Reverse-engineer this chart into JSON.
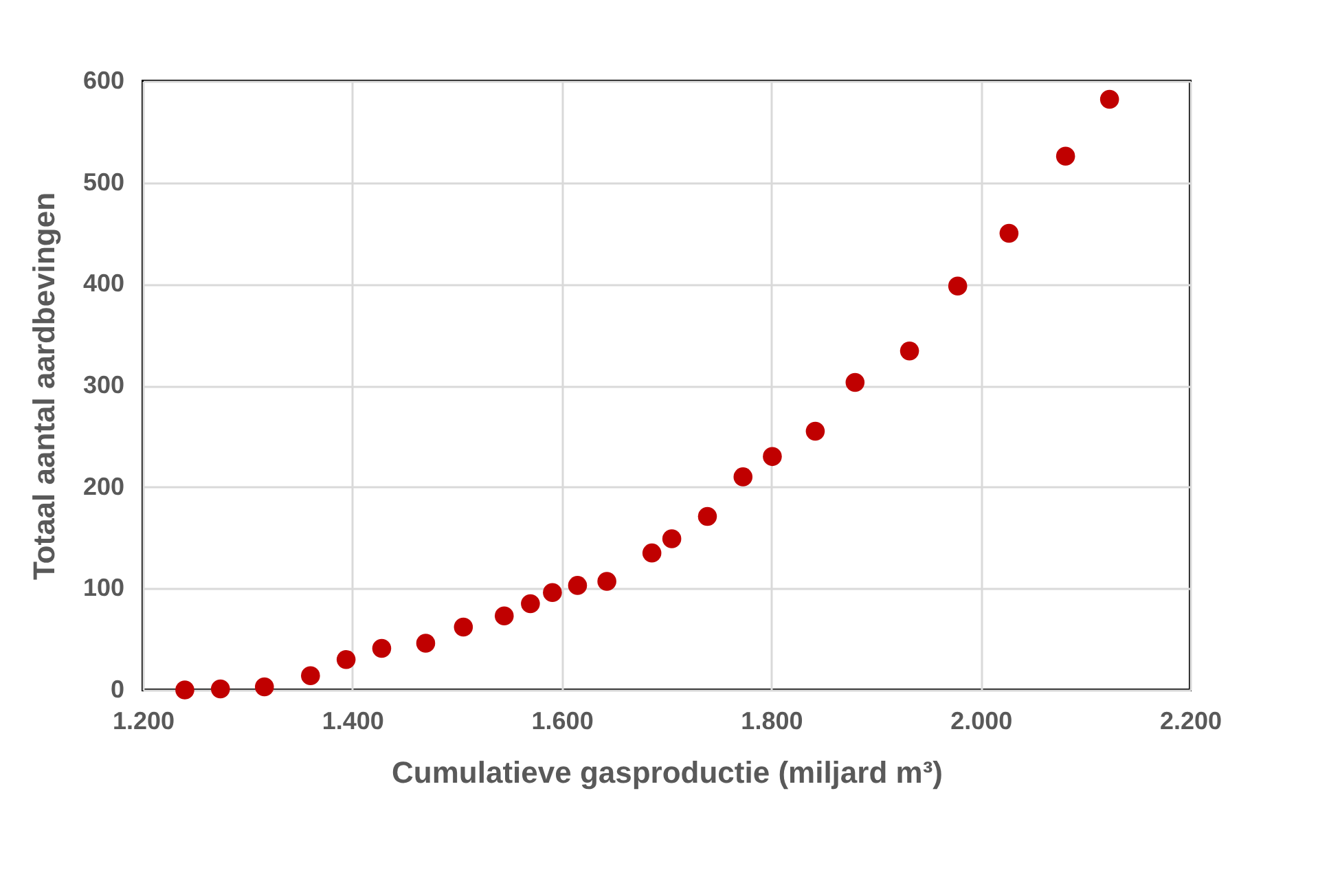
{
  "chart_data": {
    "type": "scatter",
    "xlabel": "Cumulatieve gasproductie (miljard m³)",
    "ylabel": "Totaal aantal aardbevingen",
    "x": [
      1240,
      1274,
      1316,
      1360,
      1394,
      1428,
      1470,
      1506,
      1545,
      1570,
      1591,
      1615,
      1643,
      1686,
      1705,
      1739,
      1773,
      1801,
      1842,
      1880,
      1932,
      1978,
      2027,
      2081,
      2123
    ],
    "series": [
      {
        "color": "#c00000",
        "values": [
          0,
          1,
          3,
          14,
          30,
          41,
          46,
          62,
          73,
          85,
          96,
          103,
          107,
          135,
          149,
          171,
          210,
          230,
          255,
          303,
          334,
          398,
          450,
          526,
          582
        ]
      }
    ],
    "xlim": [
      1200,
      2200
    ],
    "xticks": [
      {
        "value": 1200,
        "label": "1.200"
      },
      {
        "value": 1400,
        "label": "1.400"
      },
      {
        "value": 1600,
        "label": "1.600"
      },
      {
        "value": 1800,
        "label": "1.800"
      },
      {
        "value": 2000,
        "label": "2.000"
      },
      {
        "value": 2200,
        "label": "2.200"
      }
    ],
    "ylim": [
      0,
      600
    ],
    "yticks": [
      0,
      100,
      200,
      300,
      400,
      500,
      600
    ],
    "grid": true,
    "marker": "circle",
    "legend": false
  }
}
